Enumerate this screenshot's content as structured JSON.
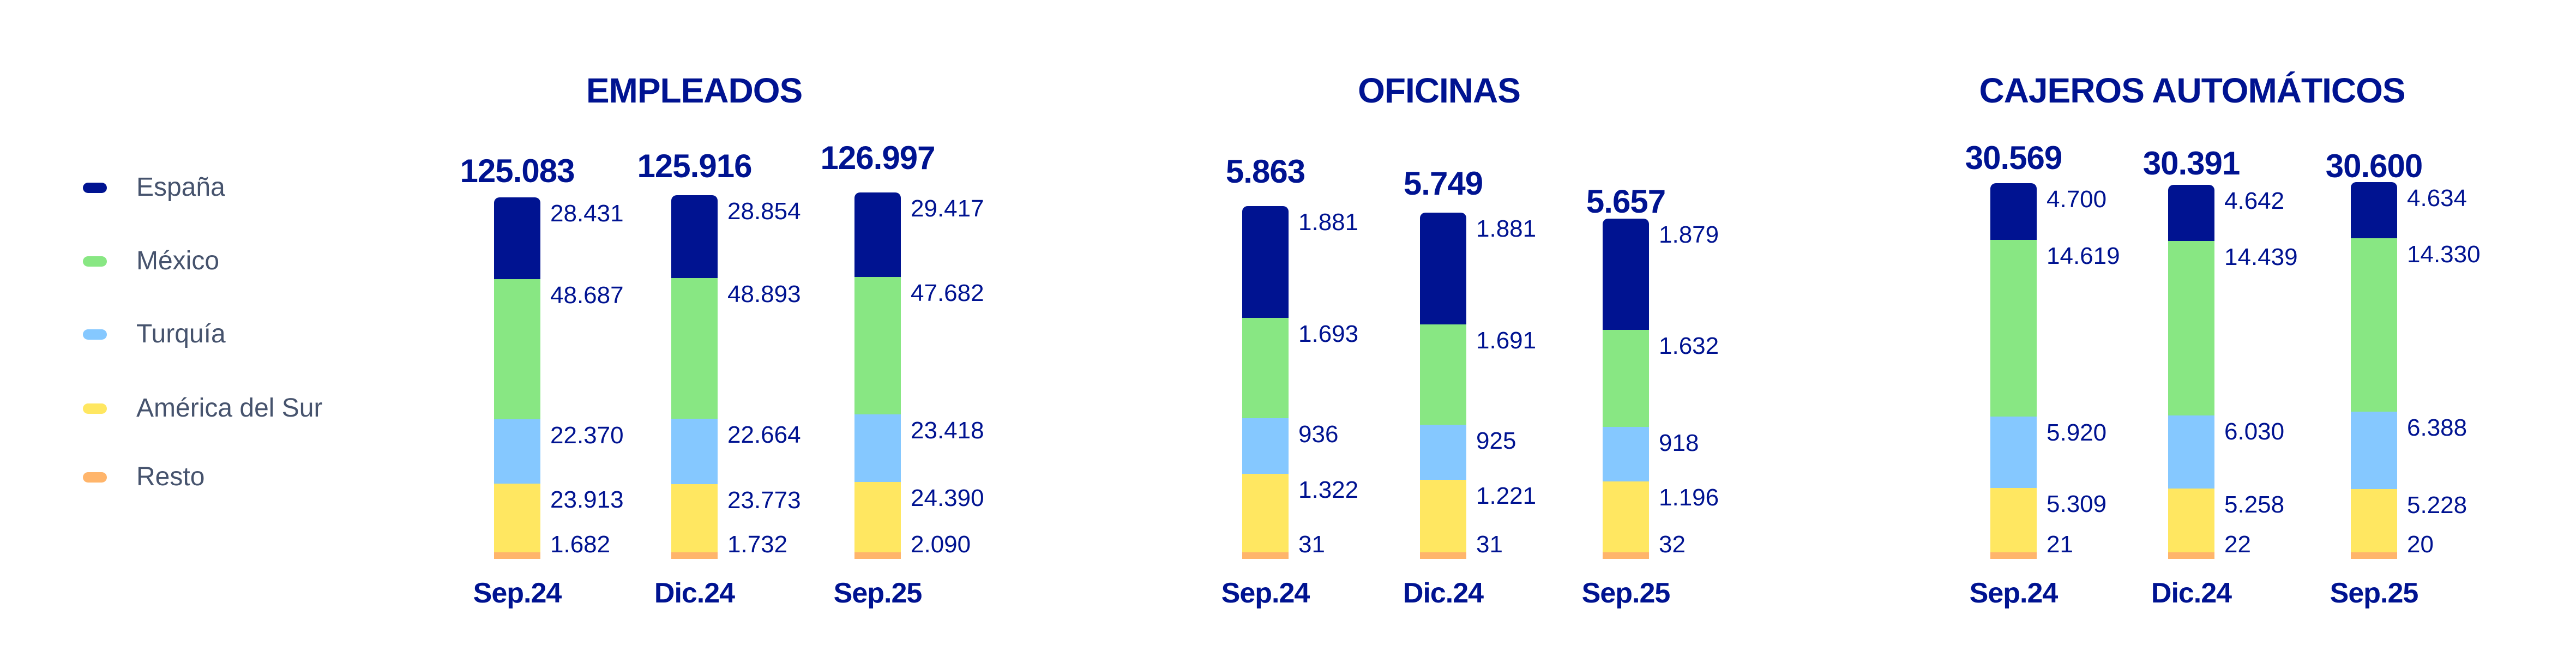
{
  "legend": [
    {
      "label": "España",
      "color": "#001391"
    },
    {
      "label": "México",
      "color": "#88E783"
    },
    {
      "label": "Turquía",
      "color": "#85C8FF"
    },
    {
      "label": "América del Sur",
      "color": "#FFE761"
    },
    {
      "label": "Resto",
      "color": "#FFB56B"
    }
  ],
  "colors": {
    "text_primary": "#001391",
    "legend_text": "#46536D"
  },
  "chart_data": [
    {
      "type": "bar",
      "stacked": true,
      "title": "EMPLEADOS",
      "categories": [
        "Sep.24",
        "Dic.24",
        "Sep.25"
      ],
      "totals": [
        "125.083",
        "125.916",
        "126.997"
      ],
      "series": [
        {
          "name": "España",
          "values": [
            28431,
            28854,
            29417
          ],
          "labels": [
            "28.431",
            "28.854",
            "29.417"
          ]
        },
        {
          "name": "México",
          "values": [
            48687,
            48893,
            47682
          ],
          "labels": [
            "48.687",
            "48.893",
            "47.682"
          ]
        },
        {
          "name": "Turquía",
          "values": [
            22370,
            22664,
            23418
          ],
          "labels": [
            "22.370",
            "22.664",
            "23.418"
          ]
        },
        {
          "name": "América del Sur",
          "values": [
            23913,
            23773,
            24390
          ],
          "labels": [
            "23.913",
            "23.773",
            "24.390"
          ]
        },
        {
          "name": "Resto",
          "values": [
            1682,
            1732,
            2090
          ],
          "labels": [
            "1.682",
            "1.732",
            "2.090"
          ]
        }
      ],
      "xlabel": "",
      "ylabel": "",
      "grid": false,
      "legend_position": "left"
    },
    {
      "type": "bar",
      "stacked": true,
      "title": "OFICINAS",
      "categories": [
        "Sep.24",
        "Dic.24",
        "Sep.25"
      ],
      "totals": [
        "5.863",
        "5.749",
        "5.657"
      ],
      "series": [
        {
          "name": "España",
          "values": [
            1881,
            1881,
            1879
          ],
          "labels": [
            "1.881",
            "1.881",
            "1.879"
          ]
        },
        {
          "name": "México",
          "values": [
            1693,
            1691,
            1632
          ],
          "labels": [
            "1.693",
            "1.691",
            "1.632"
          ]
        },
        {
          "name": "Turquía",
          "values": [
            936,
            925,
            918
          ],
          "labels": [
            "936",
            "925",
            "918"
          ]
        },
        {
          "name": "América del Sur",
          "values": [
            1322,
            1221,
            1196
          ],
          "labels": [
            "1.322",
            "1.221",
            "1.196"
          ]
        },
        {
          "name": "Resto",
          "values": [
            31,
            31,
            32
          ],
          "labels": [
            "31",
            "31",
            "32"
          ]
        }
      ],
      "xlabel": "",
      "ylabel": "",
      "grid": false,
      "legend_position": "left"
    },
    {
      "type": "bar",
      "stacked": true,
      "title": "CAJEROS AUTOMÁTICOS",
      "categories": [
        "Sep.24",
        "Dic.24",
        "Sep.25"
      ],
      "totals": [
        "30.569",
        "30.391",
        "30.600"
      ],
      "series": [
        {
          "name": "España",
          "values": [
            4700,
            4642,
            4634
          ],
          "labels": [
            "4.700",
            "4.642",
            "4.634"
          ]
        },
        {
          "name": "México",
          "values": [
            14619,
            14439,
            14330
          ],
          "labels": [
            "14.619",
            "14.439",
            "14.330"
          ]
        },
        {
          "name": "Turquía",
          "values": [
            5920,
            6030,
            6388
          ],
          "labels": [
            "5.920",
            "6.030",
            "6.388"
          ]
        },
        {
          "name": "América del Sur",
          "values": [
            5309,
            5258,
            5228
          ],
          "labels": [
            "5.309",
            "5.258",
            "5.228"
          ]
        },
        {
          "name": "Resto",
          "values": [
            21,
            22,
            20
          ],
          "labels": [
            "21",
            "22",
            "20"
          ]
        }
      ],
      "xlabel": "",
      "ylabel": "",
      "grid": false,
      "legend_position": "left"
    }
  ]
}
